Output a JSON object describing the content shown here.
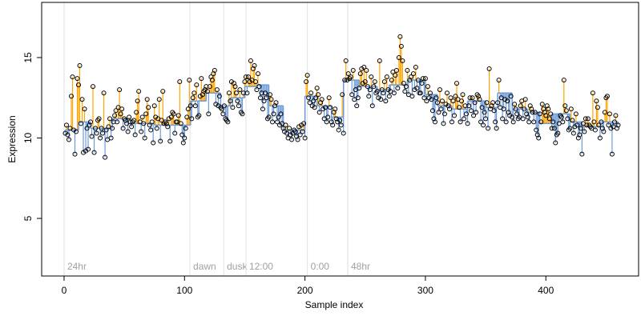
{
  "chart_data": {
    "type": "scatter",
    "xlabel": "Sample index",
    "ylabel": "Expression",
    "xlim": [
      -18.6,
      477
    ],
    "ylim": [
      1.42,
      18.43
    ],
    "xticks": [
      0,
      100,
      200,
      300,
      400
    ],
    "yticks": [
      5,
      10,
      15
    ],
    "above_color": "#FFA500",
    "below_color": "#6F9BD8",
    "point_color": "#000000",
    "values": [
      10.3,
      10.8,
      10.2,
      9.9,
      10.6,
      12.6,
      13.8,
      10.5,
      9.0,
      10.4,
      13.7,
      13.3,
      14.5,
      10.9,
      12.4,
      9.1,
      11.8,
      9.2,
      10.6,
      9.3,
      10.8,
      11.0,
      10.1,
      13.2,
      9.1,
      10.6,
      10.3,
      11.1,
      11.2,
      10.0,
      10.6,
      10.3,
      12.8,
      8.8,
      10.5,
      9.9,
      10.7,
      11.2,
      10.0,
      10.6,
      11.0,
      11.4,
      11.7,
      11.0,
      11.9,
      13.0,
      11.5,
      11.8,
      10.6,
      11.2,
      11.1,
      10.9,
      10.4,
      11.3,
      11.0,
      10.7,
      11.0,
      11.1,
      10.2,
      11.6,
      12.3,
      12.9,
      11.0,
      10.4,
      11.3,
      10.9,
      10.0,
      11.5,
      12.4,
      11.9,
      10.8,
      10.5,
      11.0,
      9.7,
      12.0,
      11.3,
      10.6,
      11.2,
      12.4,
      9.8,
      11.1,
      12.9,
      10.9,
      11.0,
      10.9,
      10.7,
      11.2,
      9.8,
      11.3,
      11.6,
      11.5,
      10.3,
      11.0,
      11.0,
      11.4,
      13.5,
      10.9,
      10.2,
      9.7,
      10.0,
      10.6,
      11.3,
      11.8,
      13.6,
      12.0,
      11.2,
      12.5,
      12.8,
      12.0,
      13.3,
      11.3,
      11.4,
      12.6,
      13.7,
      12.7,
      12.9,
      13.0,
      13.2,
      12.9,
      11.5,
      13.2,
      13.8,
      13.6,
      14.0,
      14.2,
      12.1,
      13.0,
      12.0,
      12.6,
      11.9,
      11.8,
      11.5,
      12.0,
      11.2,
      11.1,
      11.0,
      12.8,
      12.3,
      13.5,
      11.9,
      13.4,
      13.2,
      12.8,
      12.3,
      12.0,
      13.0,
      11.6,
      11.5,
      12.8,
      13.5,
      13.8,
      12.8,
      13.8,
      13.5,
      14.8,
      13.6,
      14.3,
      14.5,
      13.5,
      13.0,
      14.0,
      13.2,
      12.5,
      12.8,
      11.8,
      12.3,
      12.8,
      12.5,
      11.2,
      11.3,
      12.7,
      12.4,
      11.0,
      11.5,
      12.0,
      12.2,
      11.0,
      11.3,
      10.8,
      11.5,
      10.9,
      10.6,
      10.4,
      10.8,
      10.3,
      10.0,
      10.6,
      10.2,
      9.9,
      10.3,
      10.5,
      10.4,
      10.1,
      9.9,
      10.7,
      10.2,
      10.8,
      10.4,
      10.9,
      10.0,
      13.5,
      13.9,
      12.5,
      12.2,
      12.8,
      12.0,
      12.3,
      11.9,
      12.5,
      13.1,
      12.7,
      11.6,
      12.2,
      12.4,
      11.8,
      11.2,
      11.9,
      11.0,
      11.3,
      12.5,
      11.9,
      11.0,
      10.8,
      11.6,
      11.8,
      11.2,
      11.0,
      10.5,
      11.1,
      10.8,
      12.7,
      10.3,
      13.6,
      14.8,
      13.6,
      14.0,
      13.7,
      13.8,
      12.7,
      14.2,
      12.4,
      13.0,
      12.0,
      12.5,
      13.1,
      14.0,
      14.3,
      13.4,
      14.4,
      13.5,
      14.2,
      13.2,
      12.6,
      13.0,
      13.8,
      12.0,
      13.2,
      13.5,
      12.8,
      12.9,
      12.5,
      14.8,
      12.4,
      13.0,
      12.8,
      13.5,
      12.3,
      13.8,
      13.0,
      12.6,
      12.9,
      13.6,
      14.1,
      12.8,
      13.9,
      14.2,
      13.1,
      15.0,
      16.3,
      15.7,
      14.8,
      13.4,
      12.9,
      13.2,
      14.2,
      12.7,
      13.6,
      13.8,
      12.6,
      14.0,
      13.0,
      14.4,
      13.1,
      13.6,
      12.8,
      12.8,
      13.4,
      13.7,
      12.5,
      13.7,
      12.3,
      13.2,
      12.5,
      12.8,
      12.4,
      11.7,
      11.2,
      11.0,
      12.5,
      12.2,
      11.6,
      13.0,
      11.8,
      12.3,
      10.9,
      11.5,
      12.1,
      12.8,
      12.0,
      11.8,
      12.5,
      11.0,
      12.3,
      11.4,
      12.6,
      13.4,
      12.4,
      11.9,
      11.0,
      12.3,
      12.7,
      11.2,
      12.0,
      11.5,
      10.9,
      12.0,
      12.5,
      11.7,
      12.5,
      11.4,
      12.2,
      11.6,
      12.7,
      12.6,
      12.4,
      11.0,
      11.9,
      10.8,
      11.6,
      11.2,
      12.2,
      10.6,
      14.3,
      11.8,
      12.0,
      12.2,
      11.7,
      11.0,
      10.6,
      12.2,
      13.6,
      11.9,
      12.5,
      11.2,
      11.8,
      12.4,
      11.0,
      12.3,
      11.6,
      11.4,
      12.6,
      11.3,
      11.0,
      12.1,
      11.8,
      11.5,
      11.2,
      11.3,
      12.0,
      12.3,
      11.2,
      11.8,
      12.4,
      11.5,
      11.3,
      11.0,
      12.0,
      11.8,
      11.6,
      11.0,
      11.6,
      10.5,
      10.2,
      10.0,
      11.5,
      11.0,
      12.1,
      11.8,
      11.6,
      11.4,
      12.0,
      11.8,
      11.2,
      11.5,
      10.6,
      11.0,
      10.6,
      9.7,
      10.2,
      10.3,
      10.9,
      11.4,
      11.3,
      11.0,
      13.6,
      12.0,
      11.7,
      11.2,
      10.5,
      10.6,
      11.8,
      11.1,
      10.3,
      10.7,
      11.5,
      10.8,
      10.0,
      10.2,
      10.6,
      9.0,
      10.9,
      10.4,
      11.2,
      10.8,
      11.2,
      10.8,
      10.7,
      10.6,
      12.8,
      11.0,
      10.5,
      12.3,
      11.9,
      10.8,
      10.0,
      11.0,
      10.6,
      10.4,
      11.6,
      12.5,
      12.6,
      10.8,
      11.5,
      10.6,
      9.0,
      10.7,
      11.0,
      11.4,
      10.6,
      10.8
    ],
    "fit": {
      "x": [
        1,
        12,
        22,
        40,
        55,
        75,
        95,
        105,
        118,
        130,
        138,
        150,
        160,
        170,
        182,
        200,
        210,
        222,
        232,
        245,
        260,
        270,
        285,
        300,
        310,
        322,
        335,
        350,
        360,
        372,
        385,
        395,
        405,
        420,
        430,
        445
      ],
      "values": [
        10.5,
        11.0,
        10.6,
        11.2,
        10.9,
        10.8,
        10.8,
        12.3,
        12.8,
        12.0,
        12.5,
        13.2,
        13.3,
        12.0,
        10.5,
        12.6,
        12.0,
        11.3,
        13.6,
        13.2,
        13.0,
        13.3,
        13.6,
        12.7,
        12.0,
        11.8,
        12.3,
        11.9,
        12.8,
        11.8,
        11.6,
        10.9,
        11.5,
        11.0,
        10.7,
        11.0
      ]
    },
    "annotations": [
      {
        "x": 0,
        "label": "24hr"
      },
      {
        "x": 104.5,
        "label": "dawn"
      },
      {
        "x": 132.5,
        "label": "dusk"
      },
      {
        "x": 151,
        "label": "12:00"
      },
      {
        "x": 202,
        "label": "0:00"
      },
      {
        "x": 235.5,
        "label": "48hr"
      }
    ]
  }
}
